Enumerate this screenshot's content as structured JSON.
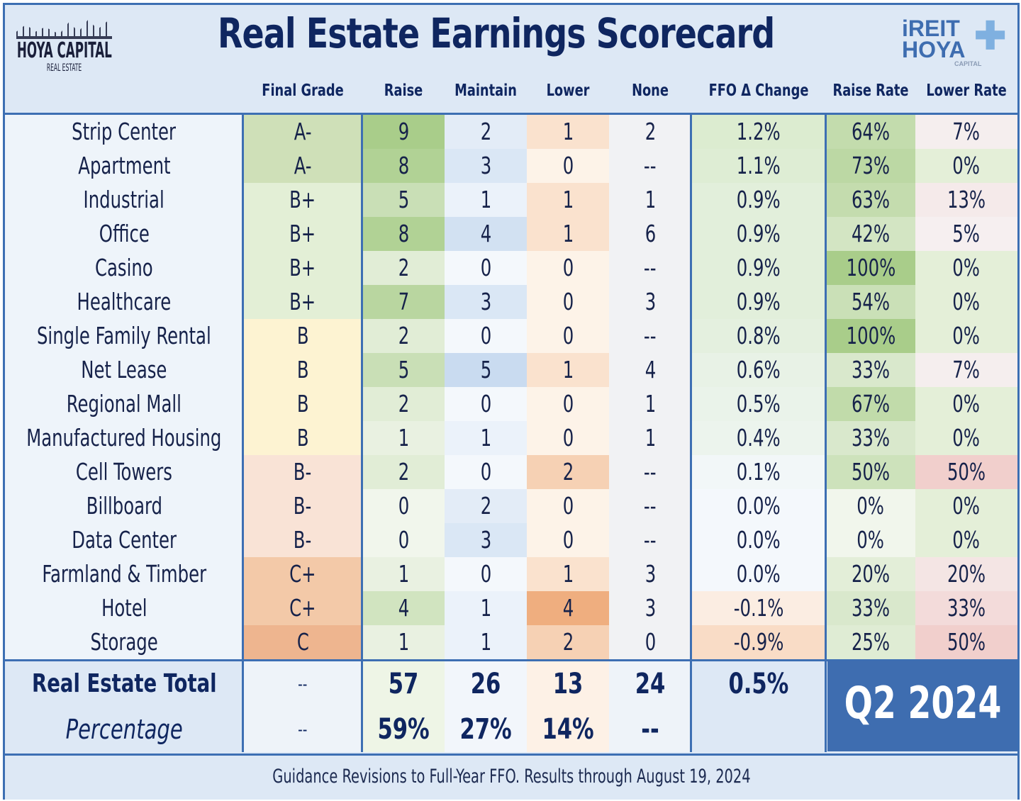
{
  "header": {
    "title": "Real Estate Earnings Scorecard",
    "logo_left": {
      "line1": "HOYA CAPITAL",
      "line2": "REAL ESTATE"
    },
    "logo_right": {
      "line1": "iREIT",
      "line2": "HOYA",
      "line3": "CAPITAL"
    }
  },
  "chart_data": {
    "type": "table",
    "title": "Real Estate Earnings Scorecard",
    "columns": [
      "",
      "Final Grade",
      "Raise",
      "Maintain",
      "Lower",
      "None",
      "FFO Δ Change",
      "Raise Rate",
      "Lower Rate"
    ],
    "rows": [
      {
        "sector": "Strip Center",
        "grade": "A-",
        "raise": "9",
        "maintain": "2",
        "lower": "1",
        "none": "2",
        "ffo": "1.2%",
        "raise_rate": "64%",
        "lower_rate": "7%"
      },
      {
        "sector": "Apartment",
        "grade": "A-",
        "raise": "8",
        "maintain": "3",
        "lower": "0",
        "none": "--",
        "ffo": "1.1%",
        "raise_rate": "73%",
        "lower_rate": "0%"
      },
      {
        "sector": "Industrial",
        "grade": "B+",
        "raise": "5",
        "maintain": "1",
        "lower": "1",
        "none": "1",
        "ffo": "0.9%",
        "raise_rate": "63%",
        "lower_rate": "13%"
      },
      {
        "sector": "Office",
        "grade": "B+",
        "raise": "8",
        "maintain": "4",
        "lower": "1",
        "none": "6",
        "ffo": "0.9%",
        "raise_rate": "42%",
        "lower_rate": "5%"
      },
      {
        "sector": "Casino",
        "grade": "B+",
        "raise": "2",
        "maintain": "0",
        "lower": "0",
        "none": "--",
        "ffo": "0.9%",
        "raise_rate": "100%",
        "lower_rate": "0%"
      },
      {
        "sector": "Healthcare",
        "grade": "B+",
        "raise": "7",
        "maintain": "3",
        "lower": "0",
        "none": "3",
        "ffo": "0.9%",
        "raise_rate": "54%",
        "lower_rate": "0%"
      },
      {
        "sector": "Single Family Rental",
        "grade": "B",
        "raise": "2",
        "maintain": "0",
        "lower": "0",
        "none": "--",
        "ffo": "0.8%",
        "raise_rate": "100%",
        "lower_rate": "0%"
      },
      {
        "sector": "Net Lease",
        "grade": "B",
        "raise": "5",
        "maintain": "5",
        "lower": "1",
        "none": "4",
        "ffo": "0.6%",
        "raise_rate": "33%",
        "lower_rate": "7%"
      },
      {
        "sector": "Regional Mall",
        "grade": "B",
        "raise": "2",
        "maintain": "0",
        "lower": "0",
        "none": "1",
        "ffo": "0.5%",
        "raise_rate": "67%",
        "lower_rate": "0%"
      },
      {
        "sector": "Manufactured Housing",
        "grade": "B",
        "raise": "1",
        "maintain": "1",
        "lower": "0",
        "none": "1",
        "ffo": "0.4%",
        "raise_rate": "33%",
        "lower_rate": "0%"
      },
      {
        "sector": "Cell Towers",
        "grade": "B-",
        "raise": "2",
        "maintain": "0",
        "lower": "2",
        "none": "--",
        "ffo": "0.1%",
        "raise_rate": "50%",
        "lower_rate": "50%"
      },
      {
        "sector": "Billboard",
        "grade": "B-",
        "raise": "0",
        "maintain": "2",
        "lower": "0",
        "none": "--",
        "ffo": "0.0%",
        "raise_rate": "0%",
        "lower_rate": "0%"
      },
      {
        "sector": "Data Center",
        "grade": "B-",
        "raise": "0",
        "maintain": "3",
        "lower": "0",
        "none": "--",
        "ffo": "0.0%",
        "raise_rate": "0%",
        "lower_rate": "0%"
      },
      {
        "sector": "Farmland & Timber",
        "grade": "C+",
        "raise": "1",
        "maintain": "0",
        "lower": "1",
        "none": "3",
        "ffo": "0.0%",
        "raise_rate": "20%",
        "lower_rate": "20%"
      },
      {
        "sector": "Hotel",
        "grade": "C+",
        "raise": "4",
        "maintain": "1",
        "lower": "4",
        "none": "3",
        "ffo": "-0.1%",
        "raise_rate": "33%",
        "lower_rate": "33%"
      },
      {
        "sector": "Storage",
        "grade": "C",
        "raise": "1",
        "maintain": "1",
        "lower": "2",
        "none": "0",
        "ffo": "-0.9%",
        "raise_rate": "25%",
        "lower_rate": "50%"
      }
    ],
    "total": {
      "label": "Real Estate Total",
      "grade": "--",
      "raise": "57",
      "maintain": "26",
      "lower": "13",
      "none": "24",
      "ffo": "0.5%"
    },
    "percentage": {
      "label": "Percentage",
      "grade": "--",
      "raise": "59%",
      "maintain": "27%",
      "lower": "14%",
      "none": "--"
    }
  },
  "period_badge": "Q2 2024",
  "footer": "Guidance Revisions to Full-Year FFO. Results through August 19, 2024",
  "colors": {
    "border": "#3d6fb3",
    "title": "#0f2660",
    "header_bg": "#dde8f5",
    "badge_bg": "#3e6db0"
  }
}
